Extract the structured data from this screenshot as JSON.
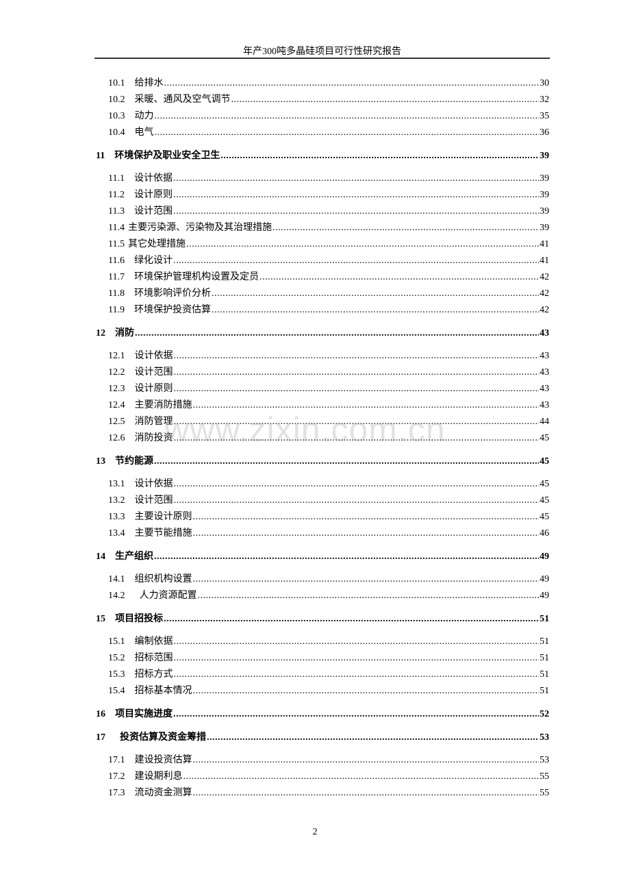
{
  "header": {
    "title": "年产300吨多晶硅项目可行性研究报告"
  },
  "watermark": "www.zixin.com.cn",
  "toc": [
    {
      "level": "sub",
      "num": "10.1",
      "title": "给排水",
      "page": "30"
    },
    {
      "level": "sub",
      "num": "10.2",
      "title": "采暖、通风及空气调节",
      "page": "32"
    },
    {
      "level": "sub",
      "num": "10.3",
      "title": "动力",
      "page": "35"
    },
    {
      "level": "sub",
      "num": "10.4",
      "title": "电气",
      "page": "36"
    },
    {
      "level": "chap",
      "num": "11",
      "title": "环境保护及职业安全卫生",
      "page": "39"
    },
    {
      "level": "sub",
      "num": "11.1",
      "title": "设计依据",
      "page": "39"
    },
    {
      "level": "sub",
      "num": "11.2",
      "title": "设计原则",
      "page": "39"
    },
    {
      "level": "sub",
      "num": "11.3",
      "title": "设计范围",
      "page": "39"
    },
    {
      "level": "sub",
      "num": "11.4",
      "title": "主要污染源、污染物及其治理措施",
      "page": "39",
      "tight": true
    },
    {
      "level": "sub",
      "num": "11.5",
      "title": "其它处理措施",
      "page": "41",
      "tight": true
    },
    {
      "level": "sub",
      "num": "11.6",
      "title": "绿化设计",
      "page": "41"
    },
    {
      "level": "sub",
      "num": "11.7",
      "title": "环境保护管理机构设置及定员",
      "page": "42"
    },
    {
      "level": "sub",
      "num": "11.8",
      "title": "环境影响评价分析",
      "page": "42"
    },
    {
      "level": "sub",
      "num": "11.9",
      "title": "环境保护投资估算",
      "page": "42"
    },
    {
      "level": "chap",
      "num": "12",
      "title": "消防",
      "page": "43"
    },
    {
      "level": "sub",
      "num": "12.1",
      "title": "设计依据",
      "page": "43"
    },
    {
      "level": "sub",
      "num": "12.2",
      "title": "设计范围",
      "page": "43"
    },
    {
      "level": "sub",
      "num": "12.3",
      "title": "设计原则",
      "page": "43"
    },
    {
      "level": "sub",
      "num": "12.4",
      "title": "主要消防措施",
      "page": "43"
    },
    {
      "level": "sub",
      "num": "12.5",
      "title": "消防管理",
      "page": "44"
    },
    {
      "level": "sub",
      "num": "12.6",
      "title": "消防投资",
      "page": "45"
    },
    {
      "level": "chap",
      "num": "13",
      "title": "节约能源",
      "page": "45"
    },
    {
      "level": "sub",
      "num": "13.1",
      "title": "设计依据",
      "page": "45"
    },
    {
      "level": "sub",
      "num": "13.2",
      "title": "设计范围",
      "page": "45"
    },
    {
      "level": "sub",
      "num": "13.3",
      "title": "主要设计原则",
      "page": "45"
    },
    {
      "level": "sub",
      "num": "13.4",
      "title": "主要节能措施",
      "page": "46"
    },
    {
      "level": "chap",
      "num": "14",
      "title": "生产组织",
      "page": "49"
    },
    {
      "level": "sub",
      "num": "14.1",
      "title": "组织机构设置",
      "page": "49"
    },
    {
      "level": "sub",
      "num": "14.2",
      "title": "  人力资源配置",
      "page": "49"
    },
    {
      "level": "chap",
      "num": "15",
      "title": "项目招投标",
      "page": "51"
    },
    {
      "level": "sub",
      "num": "15.1",
      "title": "编制依据",
      "page": "51"
    },
    {
      "level": "sub",
      "num": "15.2",
      "title": "招标范围",
      "page": "51"
    },
    {
      "level": "sub",
      "num": "15.3",
      "title": "招标方式",
      "page": "51"
    },
    {
      "level": "sub",
      "num": "15.4",
      "title": "招标基本情况",
      "page": "51"
    },
    {
      "level": "chap",
      "num": "16",
      "title": "项目实施进度",
      "page": "52"
    },
    {
      "level": "chap",
      "num": "17",
      "title": "  投资估算及资金筹措",
      "page": "53"
    },
    {
      "level": "sub",
      "num": "17.1",
      "title": "建设投资估算",
      "page": "53"
    },
    {
      "level": "sub",
      "num": "17.2",
      "title": "建设期利息",
      "page": "55"
    },
    {
      "level": "sub",
      "num": "17.3",
      "title": "流动资金测算",
      "page": "55"
    }
  ],
  "footer": {
    "page_number": "2"
  }
}
